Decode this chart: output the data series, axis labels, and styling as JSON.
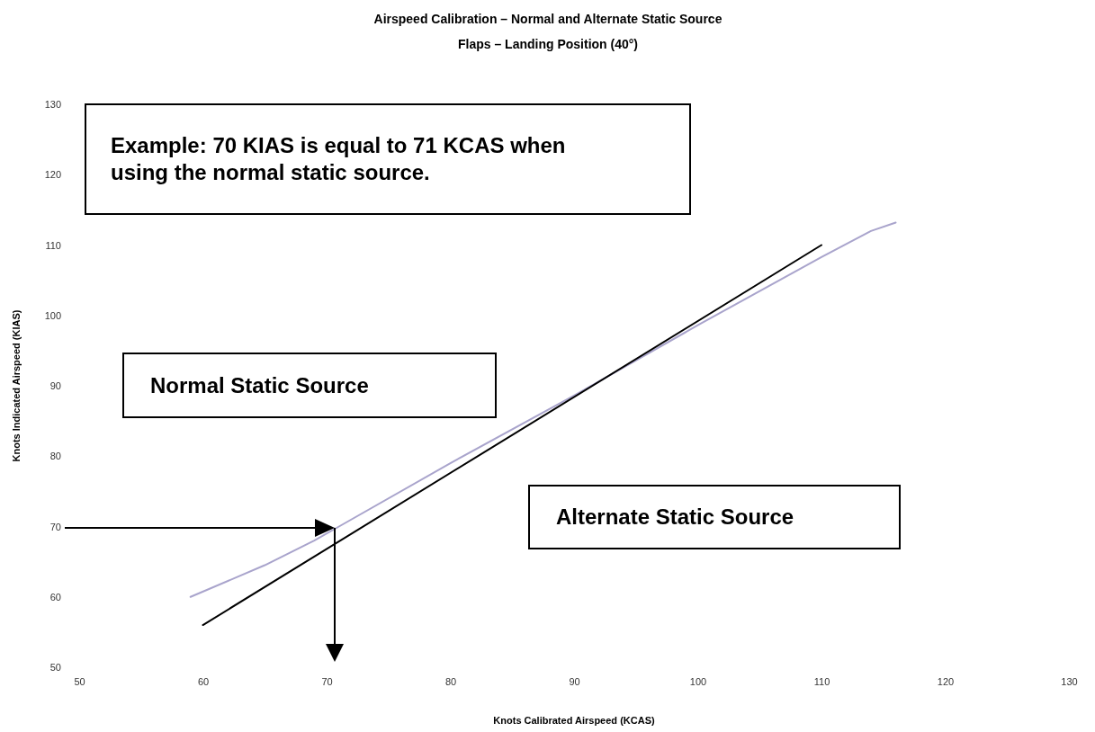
{
  "chart_data": {
    "type": "line",
    "title": "Airspeed Calibration – Normal and Alternate Static Source",
    "subtitle": "Flaps – Landing Position (40°)",
    "xlabel": "Knots Calibrated Airspeed (KCAS)",
    "ylabel": "Knots Indicated Airspeed (KIAS)",
    "xlim": [
      50,
      130
    ],
    "xticks": [
      50,
      60,
      70,
      80,
      90,
      100,
      110,
      120,
      130
    ],
    "ylim": [
      50,
      130
    ],
    "yticks": [
      50,
      60,
      70,
      80,
      90,
      100,
      110,
      120,
      130
    ],
    "series": [
      {
        "color": "#a9a4cc",
        "x": [
          59,
          65,
          69,
          71,
          80,
          90,
          100,
          110,
          114,
          116
        ],
        "values": [
          60,
          64.5,
          68,
          70,
          79,
          88.6,
          98.6,
          108.3,
          112,
          113.2
        ]
      },
      {
        "color": "#000000",
        "x": [
          60,
          110
        ],
        "values": [
          56,
          110
        ]
      }
    ],
    "annotations": [
      "Example: 70 KIAS is equal to 71 KCAS when using the normal static source.",
      "Normal Static Source",
      "Alternate Static Source"
    ]
  }
}
